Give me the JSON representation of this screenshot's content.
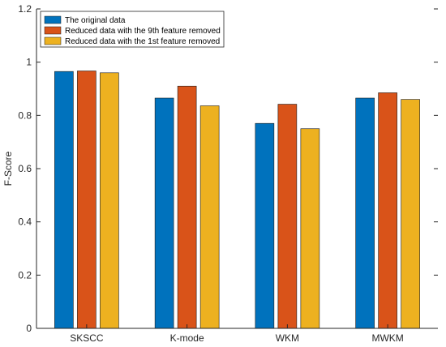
{
  "chart_data": {
    "type": "bar",
    "title": "",
    "xlabel": "",
    "ylabel": "F-Score",
    "ylim": [
      0,
      1.2
    ],
    "yticks": [
      0,
      0.2,
      0.4,
      0.6,
      0.8,
      1,
      1.2
    ],
    "ytick_labels": [
      "0",
      "0.2",
      "0.4",
      "0.6",
      "0.8",
      "1",
      "1.2"
    ],
    "categories": [
      "SKSCC",
      "K-mode",
      "WKM",
      "MWKM"
    ],
    "series": [
      {
        "name": "The original data",
        "color": "#0072BD",
        "values": [
          0.965,
          0.865,
          0.77,
          0.865
        ]
      },
      {
        "name": "Reduced data with the 9th feature removed",
        "color": "#D95319",
        "values": [
          0.967,
          0.91,
          0.842,
          0.885
        ]
      },
      {
        "name": "Reduced data with the 1st feature removed",
        "color": "#EDB120",
        "values": [
          0.96,
          0.836,
          0.75,
          0.86
        ]
      }
    ],
    "legend_position": "top-left",
    "grid": false
  }
}
